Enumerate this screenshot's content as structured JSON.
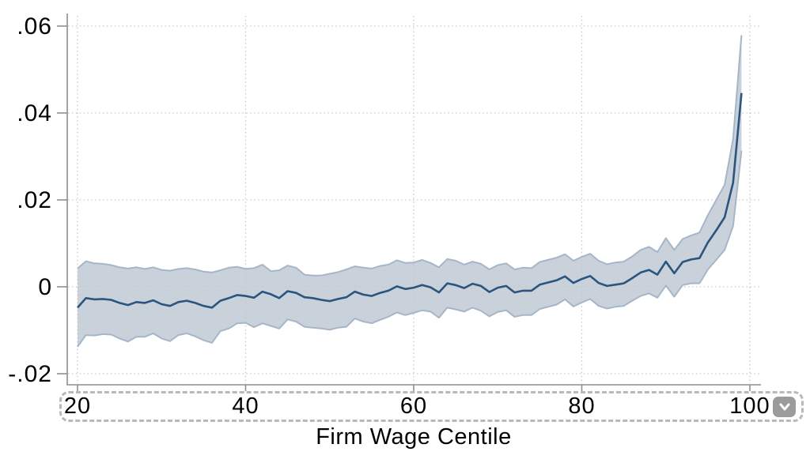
{
  "chart_data": {
    "type": "line",
    "title": "",
    "xlabel": "Firm Wage Centile",
    "ylabel": "",
    "legend": "none",
    "grid": "dotted-both-axes",
    "xlim": [
      18.8,
      101.3
    ],
    "ylim": [
      -0.022,
      0.063
    ],
    "band": "confidence interval around estimate",
    "xticks": {
      "values": [
        20,
        40,
        60,
        80,
        100
      ],
      "labels": [
        "20",
        "40",
        "60",
        "80",
        "100"
      ]
    },
    "yticks": {
      "values": [
        0.06,
        0.04,
        0.02,
        0,
        -0.02
      ],
      "labels": [
        ".06",
        ".04",
        ".02",
        "0",
        "-.02"
      ]
    },
    "x": [
      20,
      21,
      22,
      23,
      24,
      25,
      26,
      27,
      28,
      29,
      30,
      31,
      32,
      33,
      34,
      35,
      36,
      37,
      38,
      39,
      40,
      41,
      42,
      43,
      44,
      45,
      46,
      47,
      48,
      49,
      50,
      51,
      52,
      53,
      54,
      55,
      56,
      57,
      58,
      59,
      60,
      61,
      62,
      63,
      64,
      65,
      66,
      67,
      68,
      69,
      70,
      71,
      72,
      73,
      74,
      75,
      76,
      77,
      78,
      79,
      80,
      81,
      82,
      83,
      84,
      85,
      86,
      87,
      88,
      89,
      90,
      91,
      92,
      93,
      94,
      95,
      96,
      97,
      98,
      99
    ],
    "series": [
      {
        "name": "estimate",
        "values": [
          -0.0048,
          -0.0026,
          -0.0029,
          -0.0028,
          -0.003,
          -0.0037,
          -0.0042,
          -0.0035,
          -0.0037,
          -0.0031,
          -0.004,
          -0.0044,
          -0.0035,
          -0.0032,
          -0.0037,
          -0.0044,
          -0.0048,
          -0.0032,
          -0.0026,
          -0.0019,
          -0.0021,
          -0.0025,
          -0.0011,
          -0.0017,
          -0.0026,
          -0.001,
          -0.0014,
          -0.0024,
          -0.0026,
          -0.003,
          -0.0033,
          -0.0028,
          -0.0024,
          -0.0011,
          -0.0018,
          -0.0021,
          -0.0014,
          -0.0009,
          0.0001,
          -0.0005,
          -0.0002,
          0.0004,
          -0.0001,
          -0.0013,
          0.0008,
          0.0004,
          -0.0003,
          0.0007,
          0.0002,
          -0.0012,
          -0.0002,
          0.0002,
          -0.0013,
          -0.0009,
          -0.0009,
          0.0005,
          0.001,
          0.0015,
          0.0024,
          0.0009,
          0.0018,
          0.0025,
          0.0009,
          0.0002,
          0.0005,
          0.0008,
          0.002,
          0.0033,
          0.0039,
          0.0028,
          0.0058,
          0.0031,
          0.0057,
          0.0063,
          0.0066,
          0.0102,
          0.013,
          0.016,
          0.024,
          0.0446
        ]
      },
      {
        "name": "ci_upper",
        "values": [
          0.0042,
          0.0059,
          0.0054,
          0.0053,
          0.005,
          0.0045,
          0.0042,
          0.0045,
          0.0041,
          0.0045,
          0.0039,
          0.0037,
          0.0041,
          0.0043,
          0.004,
          0.0035,
          0.0033,
          0.0038,
          0.0044,
          0.0046,
          0.0041,
          0.0043,
          0.0051,
          0.0036,
          0.0038,
          0.0049,
          0.0044,
          0.0028,
          0.0026,
          0.0026,
          0.003,
          0.0034,
          0.004,
          0.0047,
          0.0044,
          0.0042,
          0.0048,
          0.0051,
          0.0061,
          0.0055,
          0.0056,
          0.0062,
          0.0055,
          0.0045,
          0.0064,
          0.006,
          0.0051,
          0.0058,
          0.0053,
          0.004,
          0.005,
          0.0054,
          0.004,
          0.0044,
          0.0043,
          0.0057,
          0.0062,
          0.0067,
          0.0075,
          0.006,
          0.0069,
          0.0076,
          0.006,
          0.0052,
          0.0056,
          0.0058,
          0.007,
          0.0085,
          0.0092,
          0.008,
          0.0112,
          0.0085,
          0.011,
          0.0118,
          0.0125,
          0.0165,
          0.02,
          0.0235,
          0.034,
          0.0579
        ]
      },
      {
        "name": "ci_lower",
        "values": [
          -0.0138,
          -0.0111,
          -0.0112,
          -0.0109,
          -0.011,
          -0.0119,
          -0.0126,
          -0.0115,
          -0.0115,
          -0.0107,
          -0.0119,
          -0.0125,
          -0.0111,
          -0.0107,
          -0.0114,
          -0.0123,
          -0.0129,
          -0.0102,
          -0.0096,
          -0.0084,
          -0.0083,
          -0.0093,
          -0.0084,
          -0.009,
          -0.0096,
          -0.0075,
          -0.008,
          -0.0092,
          -0.0094,
          -0.0096,
          -0.0099,
          -0.0094,
          -0.0092,
          -0.0073,
          -0.008,
          -0.0084,
          -0.0076,
          -0.0069,
          -0.0059,
          -0.0065,
          -0.006,
          -0.0054,
          -0.0057,
          -0.0071,
          -0.0048,
          -0.0052,
          -0.0057,
          -0.0048,
          -0.0055,
          -0.0068,
          -0.0058,
          -0.0054,
          -0.0069,
          -0.0065,
          -0.0065,
          -0.0051,
          -0.0046,
          -0.0041,
          -0.0029,
          -0.0045,
          -0.0036,
          -0.0028,
          -0.0044,
          -0.005,
          -0.0046,
          -0.0044,
          -0.0032,
          -0.0021,
          -0.0015,
          -0.0025,
          0.0003,
          -0.0023,
          0.0004,
          0.0008,
          0.0008,
          0.004,
          0.0062,
          0.0085,
          0.014,
          0.0313
        ]
      }
    ]
  },
  "colors": {
    "line": "#2b547e",
    "band_fill": "#c9d1db",
    "band_edge": "#a6b6c7",
    "gridline": "#c6c6c6",
    "axis": "#8f8f8f",
    "text": "#000000",
    "overlay_border": "#b9b9b9",
    "dropdown_bg": "#9b9b9b",
    "dropdown_glyph": "#ffffff",
    "background": "#ffffff"
  },
  "overlay": {
    "icon": "chevron-down"
  }
}
